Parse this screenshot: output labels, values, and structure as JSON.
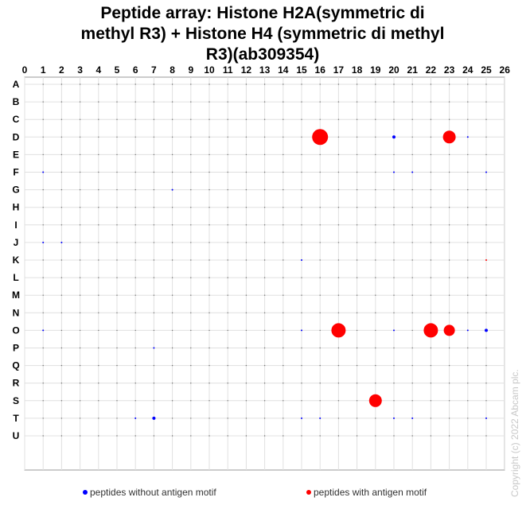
{
  "chart_data": {
    "type": "scatter",
    "title_lines": [
      "Peptide array:  Histone H2A(symmetric  di",
      "methyl R3) + Histone H4 (symmetric  di methyl",
      "R3)(ab309354)"
    ],
    "x_ticks": [
      "0",
      "1",
      "2",
      "3",
      "4",
      "5",
      "6",
      "7",
      "8",
      "9",
      "10",
      "11",
      "12",
      "13",
      "14",
      "15",
      "16",
      "17",
      "18",
      "19",
      "20",
      "21",
      "22",
      "23",
      "24",
      "25",
      "26"
    ],
    "y_ticks": [
      "A",
      "B",
      "C",
      "D",
      "E",
      "F",
      "G",
      "H",
      "I",
      "J",
      "K",
      "L",
      "M",
      "N",
      "O",
      "P",
      "Q",
      "R",
      "S",
      "T",
      "U"
    ],
    "xlim": [
      0,
      26
    ],
    "grid": true,
    "legend_position": "bottom",
    "series": [
      {
        "name": "peptides without antigen motif",
        "color": "#0000ff",
        "points": [
          {
            "x": 20,
            "y": "D",
            "size": 2
          },
          {
            "x": 24,
            "y": "D",
            "size": 1
          },
          {
            "x": 1,
            "y": "F",
            "size": 1
          },
          {
            "x": 20,
            "y": "F",
            "size": 1
          },
          {
            "x": 21,
            "y": "F",
            "size": 1
          },
          {
            "x": 25,
            "y": "F",
            "size": 1
          },
          {
            "x": 8,
            "y": "G",
            "size": 1
          },
          {
            "x": 1,
            "y": "J",
            "size": 1
          },
          {
            "x": 2,
            "y": "J",
            "size": 1
          },
          {
            "x": 15,
            "y": "K",
            "size": 1
          },
          {
            "x": 1,
            "y": "O",
            "size": 1
          },
          {
            "x": 15,
            "y": "O",
            "size": 1
          },
          {
            "x": 20,
            "y": "O",
            "size": 1
          },
          {
            "x": 24,
            "y": "O",
            "size": 1
          },
          {
            "x": 25,
            "y": "O",
            "size": 2
          },
          {
            "x": 7,
            "y": "P",
            "size": 1
          },
          {
            "x": 6,
            "y": "T",
            "size": 1
          },
          {
            "x": 7,
            "y": "T",
            "size": 2
          },
          {
            "x": 15,
            "y": "T",
            "size": 1
          },
          {
            "x": 16,
            "y": "T",
            "size": 1
          },
          {
            "x": 20,
            "y": "T",
            "size": 1
          },
          {
            "x": 21,
            "y": "T",
            "size": 1
          },
          {
            "x": 25,
            "y": "T",
            "size": 1
          }
        ]
      },
      {
        "name": "peptides with antigen motif",
        "color": "#ff0000",
        "points": [
          {
            "x": 16,
            "y": "D",
            "size": 10
          },
          {
            "x": 23,
            "y": "D",
            "size": 8
          },
          {
            "x": 25,
            "y": "K",
            "size": 1
          },
          {
            "x": 17,
            "y": "O",
            "size": 9
          },
          {
            "x": 22,
            "y": "O",
            "size": 9
          },
          {
            "x": 23,
            "y": "O",
            "size": 7
          },
          {
            "x": 19,
            "y": "S",
            "size": 8
          }
        ]
      }
    ],
    "background_dot_color": "#777777"
  },
  "copyright": "Copyright (c) 2022 Abcam plc."
}
